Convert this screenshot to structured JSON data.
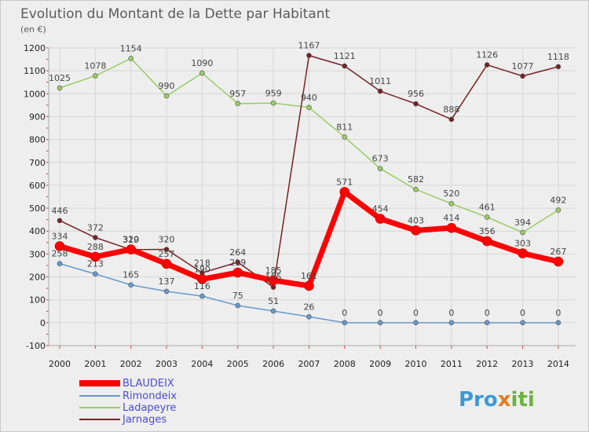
{
  "chart_data": {
    "type": "line",
    "title": "Evolution du Montant de la Dette par Habitant",
    "subtitle": "(en €)",
    "x": [
      "2000",
      "2001",
      "2002",
      "2003",
      "2004",
      "2005",
      "2006",
      "2007",
      "2008",
      "2009",
      "2010",
      "2011",
      "2012",
      "2013",
      "2014"
    ],
    "ylim": [
      -100,
      1200
    ],
    "yticks": [
      -100,
      0,
      100,
      200,
      300,
      400,
      500,
      600,
      700,
      800,
      900,
      1000,
      1100,
      1200
    ],
    "grid": true,
    "legend_position": "bottom-left",
    "series": [
      {
        "name": "BLAUDEIX",
        "color": "#ff0000",
        "values": [
          334,
          288,
          320,
          257,
          190,
          219,
          185,
          161,
          571,
          454,
          403,
          414,
          356,
          303,
          267
        ]
      },
      {
        "name": "Rimondeix",
        "color": "#6699cc",
        "values": [
          258,
          213,
          165,
          137,
          116,
          75,
          51,
          26,
          0,
          0,
          0,
          0,
          0,
          0,
          0
        ]
      },
      {
        "name": "Ladapeyre",
        "color": "#99cc66",
        "values": [
          1025,
          1078,
          1154,
          990,
          1090,
          957,
          959,
          940,
          811,
          673,
          582,
          520,
          461,
          394,
          492
        ]
      },
      {
        "name": "Jarnages",
        "color": "#772222",
        "values": [
          446,
          372,
          319,
          320,
          218,
          264,
          155,
          1167,
          1121,
          1011,
          956,
          888,
          1126,
          1077,
          1118
        ]
      }
    ]
  },
  "brand": {
    "logo": "Proxiti"
  }
}
